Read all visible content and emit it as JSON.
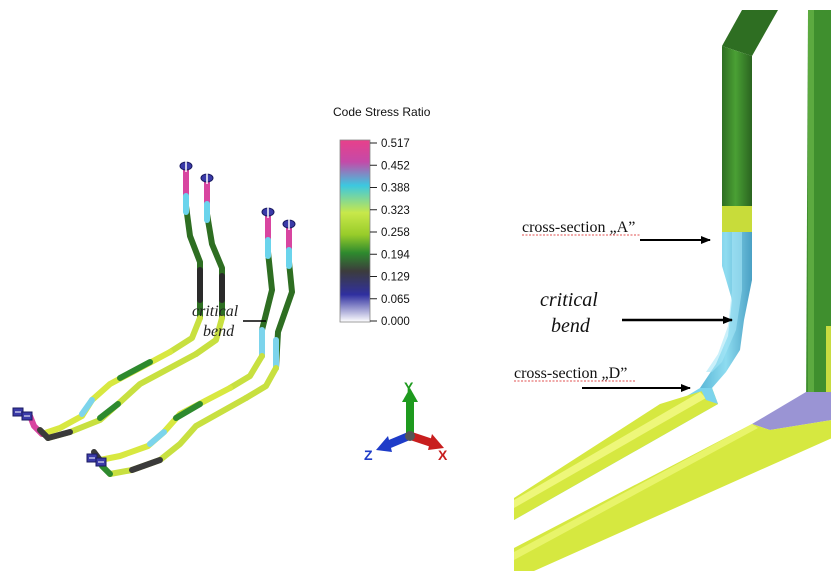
{
  "legend": {
    "title": "Code Stress Ratio",
    "ticks": [
      "0.517",
      "0.452",
      "0.388",
      "0.323",
      "0.258",
      "0.194",
      "0.129",
      "0.065",
      "0.000"
    ],
    "gradient_colors": [
      "#e8408a",
      "#c44aa8",
      "#3cc8e0",
      "#c8e84a",
      "#98cc2a",
      "#2e8a2e",
      "#3c3c3c",
      "#3030a0",
      "#ffffff"
    ]
  },
  "left_view": {
    "callout": {
      "line1": "critical",
      "line2": "bend"
    }
  },
  "triad": {
    "x_label": "X",
    "y_label": "Y",
    "z_label": "Z",
    "x_color": "#c81e1e",
    "y_color": "#1e9a1e",
    "z_color": "#1e3cc8"
  },
  "detail_view": {
    "label_a": "cross-section „A”",
    "label_d": "cross-section „D”",
    "critical": {
      "line1": "critical",
      "line2": "bend"
    }
  },
  "colors": {
    "pipe_green": "#3f8f2e",
    "pipe_yellow": "#d8e840",
    "pipe_cyan": "#7cd4ec",
    "pipe_lavender": "#9a94d4"
  }
}
